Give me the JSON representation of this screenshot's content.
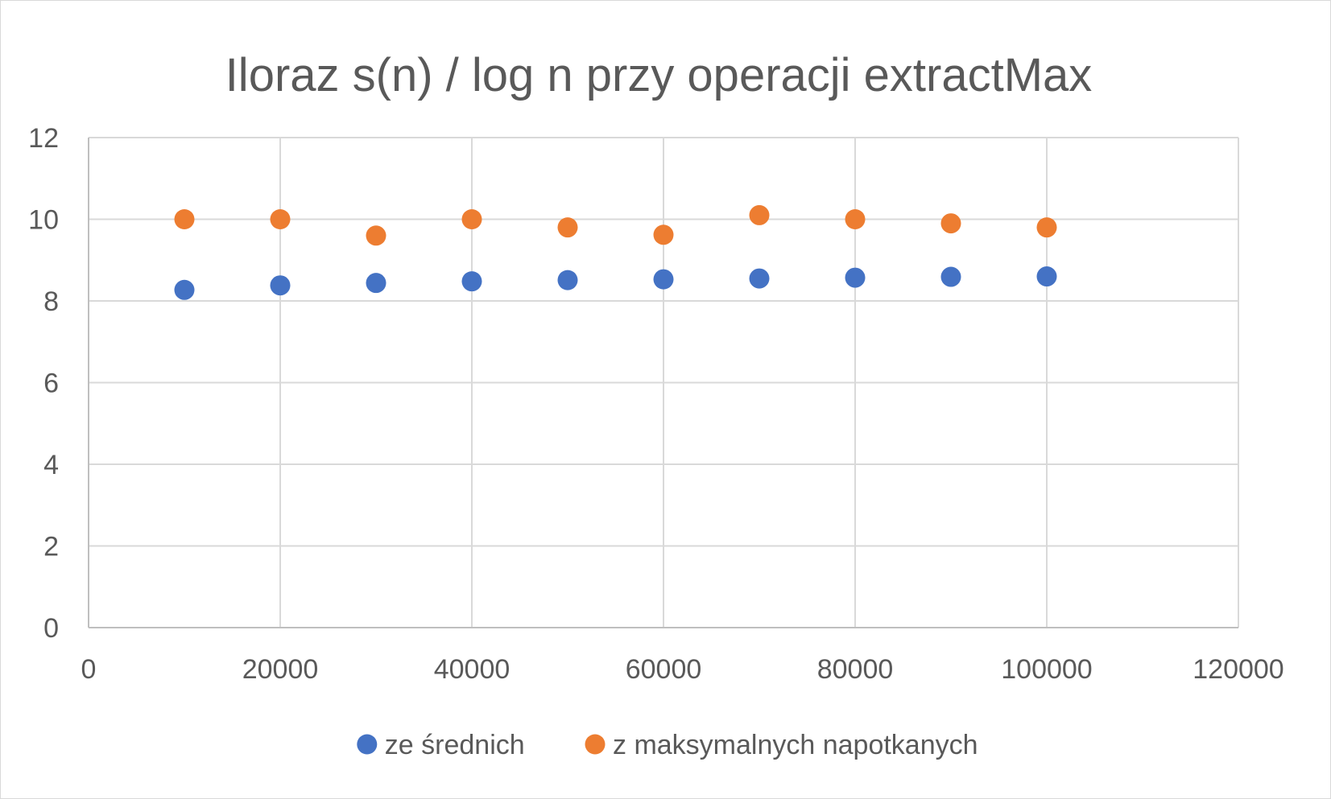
{
  "chart_data": {
    "type": "scatter",
    "title": "Iloraz s(n) / log n przy operacji extractMax",
    "xlabel": "",
    "ylabel": "",
    "xlim": [
      0,
      120000
    ],
    "ylim": [
      0,
      12
    ],
    "x_ticks": [
      0,
      20000,
      40000,
      60000,
      80000,
      100000,
      120000
    ],
    "y_ticks": [
      0,
      2,
      4,
      6,
      8,
      10,
      12
    ],
    "grid": true,
    "legend_position": "bottom",
    "series": [
      {
        "name": "ze średnich",
        "color": "#4472c4",
        "x": [
          10000,
          20000,
          30000,
          40000,
          50000,
          60000,
          70000,
          80000,
          90000,
          100000
        ],
        "y": [
          8.27,
          8.38,
          8.44,
          8.48,
          8.51,
          8.53,
          8.55,
          8.57,
          8.59,
          8.6
        ]
      },
      {
        "name": "z maksymalnych napotkanych",
        "color": "#ed7d31",
        "x": [
          10000,
          20000,
          30000,
          40000,
          50000,
          60000,
          70000,
          80000,
          90000,
          100000
        ],
        "y": [
          10.0,
          10.0,
          9.6,
          10.0,
          9.8,
          9.62,
          10.1,
          10.0,
          9.9,
          9.8
        ]
      }
    ],
    "grid_color": "#d9d9d9",
    "axis_color": "#bfbfbf"
  }
}
